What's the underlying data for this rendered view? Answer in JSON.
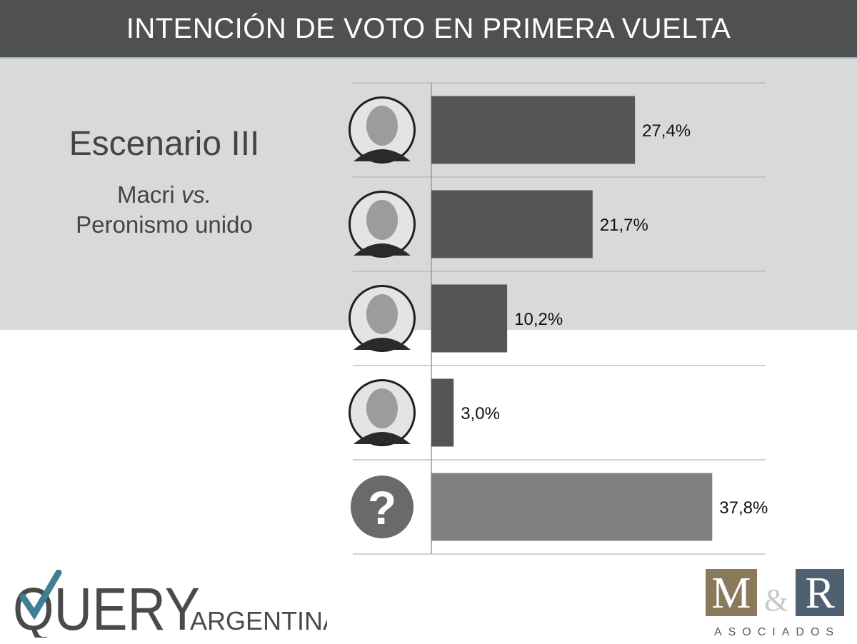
{
  "header": {
    "title": "INTENCIÓN DE VOTO EN PRIMERA VUELTA"
  },
  "scenario": {
    "title": "Escenario III",
    "line1": "Macri",
    "line1_italic": "vs.",
    "line2": "Peronismo unido"
  },
  "chart_data": {
    "type": "bar",
    "orientation": "horizontal",
    "categories": [
      "candidate-1",
      "candidate-2",
      "candidate-3",
      "candidate-4",
      "undecided"
    ],
    "values": [
      27.4,
      21.7,
      10.2,
      3.0,
      37.8
    ],
    "labels": [
      "27,4%",
      "21,7%",
      "10,2%",
      "3,0%",
      "37,8%"
    ],
    "xlim": [
      0,
      42
    ],
    "grid": true,
    "colors": [
      "#555555",
      "#555555",
      "#555555",
      "#555555",
      "#808080"
    ]
  },
  "undecided_icon": "question-mark-icon",
  "logos": {
    "query": {
      "main": "QUERY",
      "sub": "ARGENTINA"
    },
    "mr": {
      "m": "M",
      "amp": "&",
      "r": "R",
      "sub": "ASOCIADOS"
    }
  }
}
